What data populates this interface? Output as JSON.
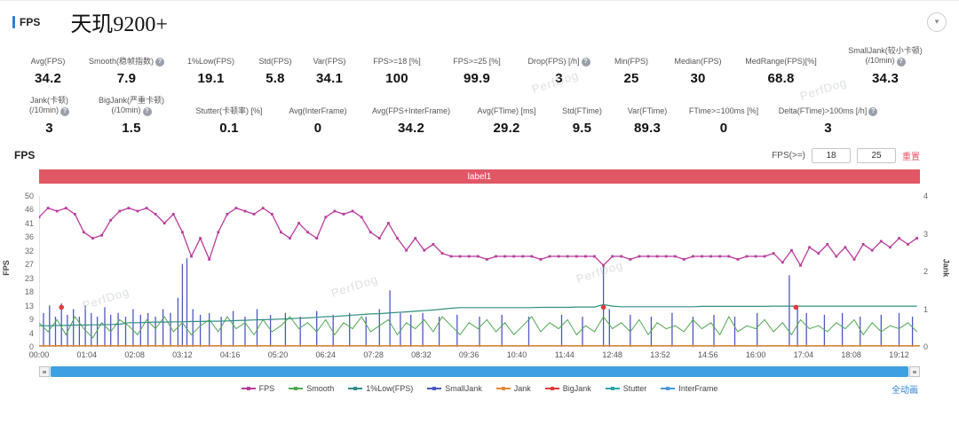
{
  "header": {
    "section_label": "FPS",
    "title": "天玑9200+"
  },
  "ui_colors": {
    "accent": "#2c7fd6",
    "banner": "#e15766",
    "reset_link": "#e15766",
    "scrollbar_thumb": "#3ea0e0",
    "link": "#2f7fd1"
  },
  "stats_row1": [
    {
      "label": "Avg(FPS)",
      "value": "34.2"
    },
    {
      "label": "Smooth(稳帧指数)",
      "help": true,
      "value": "7.9"
    },
    {
      "label": "1%Low(FPS)",
      "value": "19.1"
    },
    {
      "label": "Std(FPS)",
      "value": "5.8"
    },
    {
      "label": "Var(FPS)",
      "value": "34.1"
    },
    {
      "label": "FPS>=18 [%]",
      "value": "100"
    },
    {
      "label": "FPS>=25 [%]",
      "value": "99.9"
    },
    {
      "label": "Drop(FPS) [/h]",
      "help": true,
      "value": "3"
    },
    {
      "label": "Min(FPS)",
      "value": "25"
    },
    {
      "label": "Median(FPS)",
      "value": "30"
    },
    {
      "label": "MedRange(FPS)[%]",
      "value": "68.8"
    },
    {
      "label": "SmallJank(较小卡顿)",
      "label2": "(/10min)",
      "help": true,
      "value": "34.3"
    }
  ],
  "stats_row2": [
    {
      "label": "Jank(卡顿)",
      "label2": "(/10min)",
      "help": true,
      "value": "3"
    },
    {
      "label": "BigJank(严重卡顿)",
      "label2": "(/10min)",
      "help": true,
      "value": "1.5"
    },
    {
      "label": "Stutter(卡顿率) [%]",
      "value": "0.1"
    },
    {
      "label": "Avg(InterFrame)",
      "value": "0"
    },
    {
      "label": "Avg(FPS+InterFrame)",
      "value": "34.2"
    },
    {
      "label": "Avg(FTime) [ms]",
      "value": "29.2"
    },
    {
      "label": "Std(FTime)",
      "value": "9.5"
    },
    {
      "label": "Var(FTime)",
      "value": "89.3"
    },
    {
      "label": "FTime>=100ms [%]",
      "value": "0"
    },
    {
      "label": "Delta(FTime)>100ms [/h]",
      "help": true,
      "value": "3"
    }
  ],
  "chart": {
    "title": "FPS",
    "controls": {
      "label": "FPS(>=)",
      "input1": "18",
      "input2": "25",
      "reset_label": "重置"
    },
    "banner_label": "label1",
    "footer_link": "全动画"
  },
  "watermark": {
    "text": "PerfDog"
  },
  "chart_data": {
    "type": "line",
    "title": "label1",
    "x_axis": {
      "tick_labels": [
        "00:00",
        "01:04",
        "02:08",
        "03:12",
        "04:16",
        "05:20",
        "06:24",
        "07:28",
        "08:32",
        "09:36",
        "10:40",
        "11:44",
        "12:48",
        "13:52",
        "14:56",
        "16:00",
        "17:04",
        "18:08",
        "19:12"
      ],
      "tick_interval_seconds": 64,
      "max_seconds": 1180
    },
    "y_left": {
      "title": "FPS",
      "max": 50,
      "tick_labels": [
        "50",
        "46",
        "41",
        "36",
        "32",
        "27",
        "23",
        "18",
        "13",
        "9",
        "4",
        "0"
      ]
    },
    "y_right": {
      "title": "Jank",
      "max": 4,
      "tick_labels": [
        "4",
        "3",
        "2",
        "1",
        "0"
      ]
    },
    "step_seconds": 12,
    "series": {
      "fps": [
        43,
        46,
        45,
        46,
        44,
        38,
        36,
        37,
        42,
        45,
        46,
        45,
        46,
        44,
        41,
        44,
        38,
        30,
        36,
        29,
        38,
        44,
        46,
        45,
        44,
        46,
        44,
        38,
        36,
        41,
        38,
        36,
        43,
        45,
        44,
        45,
        43,
        38,
        36,
        41,
        36,
        32,
        36,
        32,
        34,
        31,
        30,
        30,
        30,
        30,
        29,
        30,
        30,
        30,
        30,
        30,
        29,
        30,
        30,
        30,
        30,
        30,
        30,
        27,
        30,
        30,
        29,
        30,
        30,
        30,
        30,
        30,
        29,
        30,
        30,
        30,
        30,
        30,
        29,
        30,
        30,
        30,
        31,
        28,
        32,
        27,
        33,
        31,
        34,
        30,
        33,
        29,
        34,
        32,
        35,
        33,
        36,
        34,
        36
      ],
      "smooth": [
        8,
        5,
        9,
        4,
        10,
        6,
        3,
        8,
        5,
        9,
        7,
        4,
        9,
        6,
        10,
        5,
        8,
        4,
        7,
        9,
        5,
        10,
        6,
        8,
        4,
        9,
        5,
        7,
        10,
        6,
        8,
        5,
        9,
        4,
        8,
        6,
        10,
        5,
        7,
        9,
        4,
        8,
        6,
        9,
        5,
        10,
        7,
        4,
        8,
        6,
        9,
        5,
        8,
        4,
        7,
        10,
        5,
        8,
        6,
        9,
        4,
        7,
        5,
        10,
        6,
        8,
        5,
        9,
        4,
        8,
        6,
        7,
        5,
        9,
        6,
        8,
        4,
        10,
        5,
        7,
        6,
        9,
        5,
        8,
        4,
        9,
        6,
        7,
        5,
        8,
        6,
        9,
        4,
        8,
        5,
        7,
        6,
        8,
        5
      ],
      "low1": [
        7,
        7,
        7.1,
        7.1,
        7.2,
        7.2,
        7.3,
        7.3,
        7.4,
        7.5,
        8,
        8,
        8.1,
        8.2,
        8.2,
        8.3,
        8.3,
        8.4,
        8.4,
        8.5,
        8.5,
        8.6,
        8.7,
        8.8,
        8.9,
        9,
        9.1,
        9.2,
        9.3,
        9.5,
        9.6,
        9.8,
        10,
        10.1,
        10.3,
        10.5,
        10.7,
        10.9,
        11,
        11.2,
        11.4,
        11.6,
        11.8,
        12,
        12.2,
        12.5,
        12.8,
        13,
        13,
        13,
        13,
        13,
        13,
        13,
        13,
        13,
        13.1,
        13.1,
        13.1,
        13.1,
        13.2,
        13.2,
        13.2,
        14,
        13.5,
        13.3,
        13.3,
        13.3,
        13.3,
        13.3,
        13.3,
        13.3,
        13.3,
        13.3,
        13.4,
        13.4,
        13.4,
        13.4,
        13.4,
        13.4,
        13.4,
        13.4,
        13.5,
        13.5,
        13.5,
        13.5,
        13.5,
        13.5,
        13.5,
        13.5,
        13.5,
        13.5,
        13.5,
        13.5,
        13.5,
        13.5,
        13.5,
        13.5,
        13.5
      ]
    },
    "series_events": {
      "smalljank": [
        [
          6,
          0.9
        ],
        [
          14,
          1.1
        ],
        [
          22,
          0.8
        ],
        [
          30,
          1.15
        ],
        [
          38,
          0.85
        ],
        [
          46,
          1.0
        ],
        [
          54,
          0.8
        ],
        [
          62,
          1.1
        ],
        [
          70,
          0.9
        ],
        [
          78,
          0.8
        ],
        [
          88,
          1.05
        ],
        [
          96,
          0.85
        ],
        [
          106,
          0.9
        ],
        [
          116,
          0.8
        ],
        [
          126,
          1.0
        ],
        [
          136,
          0.85
        ],
        [
          146,
          0.9
        ],
        [
          156,
          0.8
        ],
        [
          166,
          1.0
        ],
        [
          176,
          0.9
        ],
        [
          186,
          1.3
        ],
        [
          192,
          2.2
        ],
        [
          198,
          2.35
        ],
        [
          206,
          1.0
        ],
        [
          216,
          0.85
        ],
        [
          228,
          0.9
        ],
        [
          244,
          0.8
        ],
        [
          260,
          0.95
        ],
        [
          276,
          0.8
        ],
        [
          292,
          1.0
        ],
        [
          310,
          0.85
        ],
        [
          330,
          0.9
        ],
        [
          350,
          0.8
        ],
        [
          372,
          0.95
        ],
        [
          394,
          0.85
        ],
        [
          416,
          0.9
        ],
        [
          438,
          0.8
        ],
        [
          456,
          1.0
        ],
        [
          470,
          1.5
        ],
        [
          484,
          0.9
        ],
        [
          498,
          0.85
        ],
        [
          514,
          0.9
        ],
        [
          536,
          0.8
        ],
        [
          560,
          0.85
        ],
        [
          590,
          0.8
        ],
        [
          620,
          0.85
        ],
        [
          656,
          0.8
        ],
        [
          700,
          0.85
        ],
        [
          728,
          0.8
        ],
        [
          756,
          2.2
        ],
        [
          764,
          1.0
        ],
        [
          792,
          0.85
        ],
        [
          820,
          0.8
        ],
        [
          848,
          0.9
        ],
        [
          876,
          0.8
        ],
        [
          904,
          0.85
        ],
        [
          932,
          0.8
        ],
        [
          962,
          0.9
        ],
        [
          1005,
          1.9
        ],
        [
          1016,
          1.1
        ],
        [
          1028,
          0.9
        ],
        [
          1052,
          0.85
        ],
        [
          1076,
          0.9
        ],
        [
          1100,
          0.8
        ],
        [
          1128,
          0.85
        ],
        [
          1152,
          0.9
        ],
        [
          1170,
          0.8
        ]
      ],
      "bigjank": [
        [
          30,
          1.05
        ],
        [
          756,
          1.05
        ],
        [
          1014,
          1.05
        ]
      ],
      "jank_baseline": 0
    },
    "colors": {
      "fps": "#b93c9c",
      "smooth": "#4fa84f",
      "low1": "#2f8f83",
      "smalljank": "#4d58c0",
      "jank": "#e08a3c",
      "bigjank": "#e23b3b",
      "stutter": "#2aa7a7",
      "interframe": "#4a96dc"
    },
    "legend": [
      {
        "label": "FPS",
        "key": "fps"
      },
      {
        "label": "Smooth",
        "key": "smooth"
      },
      {
        "label": "1%Low(FPS)",
        "key": "low1"
      },
      {
        "label": "SmallJank",
        "key": "smalljank"
      },
      {
        "label": "Jank",
        "key": "jank"
      },
      {
        "label": "BigJank",
        "key": "bigjank"
      },
      {
        "label": "Stutter",
        "key": "stutter"
      },
      {
        "label": "InterFrame",
        "key": "interframe"
      }
    ],
    "legend_position": "bottom",
    "grid": false
  }
}
